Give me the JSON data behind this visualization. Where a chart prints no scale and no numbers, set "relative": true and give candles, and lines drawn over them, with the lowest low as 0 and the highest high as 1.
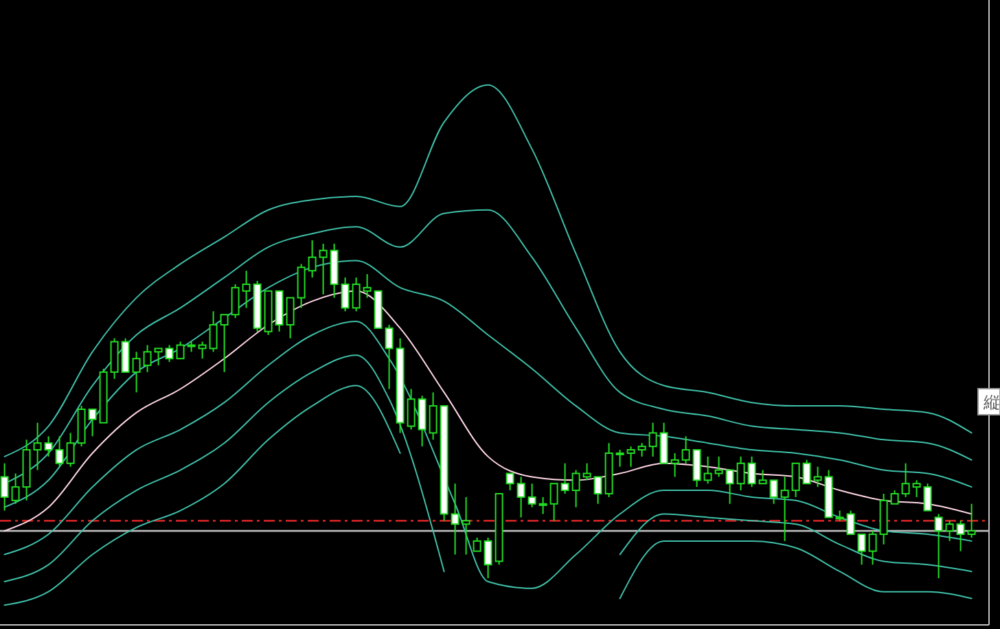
{
  "chart_data": {
    "type": "candlestick",
    "relative": true,
    "annotations": [
      "縦"
    ],
    "categories": [
      null,
      null,
      null,
      null,
      null,
      null,
      null,
      null,
      null,
      null,
      null,
      null,
      null,
      null,
      null,
      null,
      null,
      null,
      null,
      null,
      null,
      null,
      null,
      null,
      null,
      null,
      null,
      null,
      null,
      null,
      null,
      null,
      null,
      null,
      null,
      null,
      null,
      null,
      null,
      null,
      null,
      null,
      null,
      null,
      null,
      null,
      null,
      null,
      null,
      null,
      null,
      null,
      null,
      null,
      null,
      null,
      null,
      null,
      null,
      null,
      null,
      null,
      null,
      null,
      null,
      null,
      null,
      null,
      null,
      null,
      null,
      null,
      null,
      null,
      null,
      null,
      null,
      null,
      null,
      null,
      null,
      null,
      null,
      null,
      null,
      null,
      null,
      null,
      null
    ],
    "color": "#22dd22",
    "ohlc": [
      [
        0.3,
        0.34,
        0.2,
        0.24
      ],
      [
        0.23,
        0.31,
        0.22,
        0.27
      ],
      [
        0.27,
        0.41,
        0.23,
        0.38
      ],
      [
        0.38,
        0.46,
        0.32,
        0.4
      ],
      [
        0.4,
        0.42,
        0.36,
        0.38
      ],
      [
        0.38,
        0.42,
        0.33,
        0.34
      ],
      [
        0.34,
        0.43,
        0.33,
        0.4
      ],
      [
        0.4,
        0.51,
        0.39,
        0.5
      ],
      [
        0.5,
        0.5,
        0.42,
        0.47
      ],
      [
        0.46,
        0.62,
        0.46,
        0.61
      ],
      [
        0.61,
        0.71,
        0.59,
        0.7
      ],
      [
        0.7,
        0.71,
        0.61,
        0.61
      ],
      [
        0.61,
        0.67,
        0.55,
        0.65
      ],
      [
        0.63,
        0.69,
        0.61,
        0.67
      ],
      [
        0.67,
        0.68,
        0.63,
        0.68
      ],
      [
        0.68,
        0.69,
        0.64,
        0.65
      ],
      [
        0.65,
        0.7,
        0.65,
        0.69
      ],
      [
        0.69,
        0.7,
        0.67,
        0.69
      ],
      [
        0.68,
        0.7,
        0.65,
        0.69
      ],
      [
        0.68,
        0.79,
        0.67,
        0.75
      ],
      [
        0.75,
        0.78,
        0.61,
        0.78
      ],
      [
        0.78,
        0.87,
        0.77,
        0.86
      ],
      [
        0.85,
        0.91,
        0.8,
        0.87
      ],
      [
        0.87,
        0.88,
        0.73,
        0.74
      ],
      [
        0.73,
        0.85,
        0.72,
        0.85
      ],
      [
        0.85,
        0.85,
        0.73,
        0.75
      ],
      [
        0.75,
        0.83,
        0.71,
        0.83
      ],
      [
        0.83,
        0.93,
        0.8,
        0.92
      ],
      [
        0.91,
        1.0,
        0.89,
        0.95
      ],
      [
        0.95,
        0.99,
        0.84,
        0.97
      ],
      [
        0.97,
        0.99,
        0.83,
        0.87
      ],
      [
        0.87,
        0.89,
        0.79,
        0.8
      ],
      [
        0.8,
        0.89,
        0.79,
        0.87
      ],
      [
        0.85,
        0.9,
        0.83,
        0.86
      ],
      [
        0.85,
        0.85,
        0.74,
        0.74
      ],
      [
        0.74,
        0.75,
        0.56,
        0.68
      ],
      [
        0.68,
        0.71,
        0.43,
        0.46
      ],
      [
        0.45,
        0.56,
        0.44,
        0.53
      ],
      [
        0.53,
        0.54,
        0.39,
        0.44
      ],
      [
        0.43,
        0.55,
        0.41,
        0.51
      ],
      [
        0.51,
        0.51,
        0.17,
        0.19
      ],
      [
        0.19,
        0.28,
        0.07,
        0.16
      ],
      [
        0.16,
        0.24,
        0.07,
        0.17
      ],
      [
        0.08,
        0.12,
        0.08,
        0.11
      ],
      [
        0.11,
        0.12,
        0.0,
        0.04
      ],
      [
        0.05,
        0.25,
        0.04,
        0.25
      ],
      [
        0.31,
        0.31,
        0.26,
        0.28
      ],
      [
        0.28,
        0.3,
        0.18,
        0.24
      ],
      [
        0.24,
        0.28,
        0.21,
        0.22
      ],
      [
        0.22,
        0.24,
        0.19,
        0.22
      ],
      [
        0.22,
        0.28,
        0.17,
        0.28
      ],
      [
        0.28,
        0.34,
        0.25,
        0.26
      ],
      [
        0.26,
        0.32,
        0.21,
        0.31
      ],
      [
        0.3,
        0.34,
        0.29,
        0.31
      ],
      [
        0.3,
        0.3,
        0.22,
        0.25
      ],
      [
        0.25,
        0.4,
        0.24,
        0.37
      ],
      [
        0.37,
        0.38,
        0.33,
        0.37
      ],
      [
        0.37,
        0.39,
        0.33,
        0.38
      ],
      [
        0.38,
        0.4,
        0.36,
        0.39
      ],
      [
        0.39,
        0.46,
        0.36,
        0.43
      ],
      [
        0.43,
        0.46,
        0.34,
        0.34
      ],
      [
        0.34,
        0.37,
        0.3,
        0.35
      ],
      [
        0.35,
        0.42,
        0.34,
        0.38
      ],
      [
        0.38,
        0.38,
        0.27,
        0.29
      ],
      [
        0.29,
        0.36,
        0.28,
        0.31
      ],
      [
        0.31,
        0.36,
        0.3,
        0.32
      ],
      [
        0.32,
        0.32,
        0.22,
        0.28
      ],
      [
        0.28,
        0.36,
        0.26,
        0.34
      ],
      [
        0.34,
        0.36,
        0.27,
        0.28
      ],
      [
        0.28,
        0.32,
        0.28,
        0.29
      ],
      [
        0.29,
        0.29,
        0.22,
        0.24
      ],
      [
        0.24,
        0.3,
        0.11,
        0.26
      ],
      [
        0.26,
        0.34,
        0.24,
        0.34
      ],
      [
        0.34,
        0.35,
        0.28,
        0.28
      ],
      [
        0.29,
        0.33,
        0.27,
        0.3
      ],
      [
        0.3,
        0.32,
        0.18,
        0.18
      ],
      [
        0.18,
        0.2,
        0.17,
        0.18
      ],
      [
        0.19,
        0.2,
        0.13,
        0.13
      ],
      [
        0.13,
        0.13,
        0.04,
        0.08
      ],
      [
        0.08,
        0.14,
        0.04,
        0.13
      ],
      [
        0.13,
        0.25,
        0.1,
        0.23
      ],
      [
        0.22,
        0.26,
        0.22,
        0.25
      ],
      [
        0.25,
        0.34,
        0.24,
        0.28
      ],
      [
        0.27,
        0.29,
        0.24,
        0.28
      ],
      [
        0.27,
        0.28,
        0.2,
        0.2
      ],
      [
        0.18,
        0.19,
        0.0,
        0.14
      ],
      [
        0.14,
        0.17,
        0.11,
        0.16
      ],
      [
        0.16,
        0.17,
        0.08,
        0.13
      ],
      [
        0.13,
        0.22,
        0.12,
        0.14
      ]
    ],
    "series": [
      {
        "type": "line",
        "color": "#3fbfa8",
        "values": [
          0.36,
          null,
          null,
          null,
          0.45,
          null,
          null,
          null,
          0.67,
          null,
          null,
          null,
          0.83,
          null,
          null,
          null,
          0.93,
          null,
          null,
          null,
          1.01,
          null,
          null,
          null,
          1.09,
          null,
          null,
          null,
          1.12,
          null,
          null,
          null,
          1.13,
          null,
          null,
          null,
          1.1,
          null,
          null,
          null,
          1.35,
          null,
          null,
          null,
          1.46,
          null,
          null,
          null,
          1.27,
          null,
          null,
          null,
          0.96,
          null,
          null,
          null,
          0.67,
          null,
          null,
          null,
          0.57,
          null,
          null,
          null,
          0.55,
          null,
          null,
          null,
          0.52,
          null,
          null,
          null,
          0.51,
          null,
          null,
          null,
          0.51,
          null,
          null,
          null,
          0.5,
          null,
          null,
          null,
          0.49,
          null,
          null,
          null,
          0.43
        ]
      },
      {
        "type": "line",
        "color": "#3fbfa8",
        "values": [
          0.28,
          null,
          null,
          null,
          0.37,
          null,
          null,
          null,
          0.57,
          null,
          null,
          null,
          0.72,
          null,
          null,
          null,
          0.8,
          null,
          null,
          null,
          0.89,
          null,
          null,
          null,
          0.98,
          null,
          null,
          null,
          1.02,
          null,
          null,
          null,
          1.04,
          null,
          null,
          null,
          0.98,
          null,
          null,
          null,
          1.08,
          null,
          null,
          null,
          1.09,
          null,
          null,
          null,
          0.95,
          null,
          null,
          null,
          0.74,
          null,
          null,
          null,
          0.55,
          null,
          null,
          null,
          0.5,
          null,
          null,
          null,
          0.48,
          null,
          null,
          null,
          0.45,
          null,
          null,
          null,
          0.44,
          null,
          null,
          null,
          0.43,
          null,
          null,
          null,
          0.41,
          null,
          null,
          null,
          0.4,
          null,
          null,
          null,
          0.35
        ]
      },
      {
        "type": "line",
        "color": "#3fbfa8",
        "values": [
          0.21,
          null,
          null,
          null,
          0.29,
          null,
          null,
          null,
          0.47,
          null,
          null,
          null,
          0.61,
          null,
          null,
          null,
          0.68,
          null,
          null,
          null,
          0.77,
          null,
          null,
          null,
          0.86,
          null,
          null,
          null,
          0.92,
          null,
          null,
          null,
          0.94,
          null,
          null,
          null,
          0.86,
          null,
          null,
          null,
          0.82,
          null,
          null,
          null,
          0.72,
          null,
          null,
          null,
          0.62,
          null,
          null,
          null,
          0.51,
          null,
          null,
          null,
          0.43,
          null,
          null,
          null,
          0.42,
          null,
          null,
          null,
          0.4,
          null,
          null,
          null,
          0.38,
          null,
          null,
          null,
          0.37,
          null,
          null,
          null,
          0.35,
          null,
          null,
          null,
          0.32,
          null,
          null,
          null,
          0.31,
          null,
          null,
          null,
          0.27
        ]
      },
      {
        "type": "line",
        "color": "#ffd6e6",
        "values": [
          0.14,
          null,
          null,
          null,
          0.21,
          null,
          null,
          null,
          0.37,
          null,
          null,
          null,
          0.49,
          null,
          null,
          null,
          0.56,
          null,
          null,
          null,
          0.65,
          null,
          null,
          null,
          0.75,
          null,
          null,
          null,
          0.82,
          null,
          null,
          null,
          0.85,
          null,
          null,
          null,
          0.74,
          null,
          null,
          null,
          0.55,
          null,
          null,
          null,
          0.36,
          null,
          null,
          null,
          0.3,
          null,
          null,
          null,
          0.29,
          null,
          null,
          null,
          0.31,
          null,
          null,
          null,
          0.34,
          null,
          null,
          null,
          0.33,
          null,
          null,
          null,
          0.31,
          null,
          null,
          null,
          0.3,
          null,
          null,
          null,
          0.26,
          null,
          null,
          null,
          0.23,
          null,
          null,
          null,
          0.22,
          null,
          null,
          null,
          0.19
        ]
      },
      {
        "type": "line",
        "color": "#3fbfa8",
        "values": [
          0.07,
          null,
          null,
          null,
          0.13,
          null,
          null,
          null,
          0.27,
          null,
          null,
          null,
          0.38,
          null,
          null,
          null,
          0.44,
          null,
          null,
          null,
          0.52,
          null,
          null,
          null,
          0.63,
          null,
          null,
          null,
          0.72,
          null,
          null,
          null,
          0.76,
          null,
          null,
          0.65,
          null,
          null,
          null,
          null,
          null,
          0.22,
          null,
          null,
          -0.01,
          null,
          null,
          null,
          -0.03,
          null,
          null,
          null,
          0.07,
          null,
          null,
          null,
          0.19,
          null,
          null,
          null,
          0.26,
          null,
          null,
          null,
          0.26,
          null,
          null,
          null,
          0.24,
          null,
          null,
          null,
          0.23,
          null,
          null,
          null,
          0.18,
          null,
          null,
          null,
          0.14,
          null,
          null,
          null,
          0.13,
          null,
          null,
          null,
          0.11
        ]
      },
      {
        "type": "line",
        "color": "#3fbfa8",
        "values": [
          -0.01,
          null,
          null,
          null,
          0.04,
          null,
          null,
          null,
          0.17,
          null,
          null,
          null,
          0.26,
          null,
          null,
          null,
          0.32,
          null,
          null,
          null,
          0.4,
          null,
          null,
          null,
          0.52,
          null,
          null,
          null,
          0.61,
          null,
          null,
          null,
          0.66,
          null,
          null,
          0.53,
          null,
          null,
          null,
          null,
          0.02,
          null,
          null,
          null,
          null,
          null,
          null,
          null,
          null,
          null,
          null,
          null,
          null,
          null,
          null,
          null,
          0.07,
          null,
          null,
          null,
          0.19,
          null,
          null,
          null,
          0.18,
          null,
          null,
          null,
          0.17,
          null,
          null,
          null,
          0.16,
          null,
          null,
          null,
          0.1,
          null,
          null,
          null,
          0.05,
          null,
          null,
          null,
          0.04,
          null,
          null,
          null,
          0.02
        ]
      },
      {
        "type": "line",
        "color": "#3fbfa8",
        "values": [
          -0.08,
          null,
          null,
          null,
          -0.04,
          null,
          null,
          null,
          0.07,
          null,
          null,
          null,
          0.15,
          null,
          null,
          null,
          0.2,
          null,
          null,
          null,
          0.28,
          null,
          null,
          null,
          0.41,
          null,
          null,
          null,
          0.51,
          null,
          null,
          null,
          0.57,
          null,
          null,
          null,
          0.37,
          null,
          null,
          null,
          null,
          null,
          null,
          null,
          null,
          null,
          null,
          null,
          null,
          null,
          null,
          null,
          null,
          null,
          null,
          null,
          -0.06,
          null,
          null,
          null,
          0.11,
          null,
          null,
          null,
          0.11,
          null,
          null,
          null,
          0.11,
          null,
          null,
          null,
          0.09,
          null,
          null,
          null,
          0.02,
          null,
          null,
          null,
          -0.04,
          null,
          null,
          null,
          -0.04,
          null,
          null,
          null,
          -0.06
        ]
      }
    ],
    "ref_lines": [
      {
        "axis": "y",
        "value": 0.17,
        "color": "#cc2222",
        "line_style": "dashed"
      },
      {
        "axis": "y",
        "value": 0.14,
        "color": "#b8b8b8",
        "line_style": "solid"
      }
    ]
  }
}
